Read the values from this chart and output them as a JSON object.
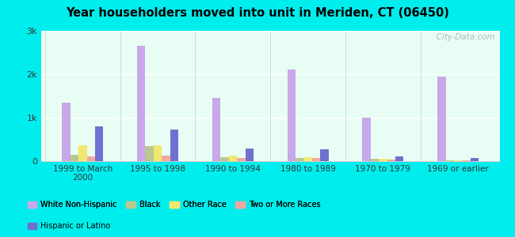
{
  "title": "Year householders moved into unit in Meriden, CT (06450)",
  "categories": [
    "1999 to March\n2000",
    "1995 to 1998",
    "1990 to 1994",
    "1980 to 1989",
    "1970 to 1979",
    "1969 or earlier"
  ],
  "series": {
    "White Non-Hispanic": [
      1350,
      2650,
      1450,
      2100,
      1000,
      1950
    ],
    "Black": [
      150,
      350,
      100,
      70,
      50,
      25
    ],
    "Other Race": [
      370,
      370,
      120,
      100,
      60,
      20
    ],
    "Two or More Races": [
      110,
      120,
      70,
      70,
      30,
      15
    ],
    "Hispanic or Latino": [
      800,
      720,
      300,
      280,
      110,
      70
    ]
  },
  "colors": {
    "White Non-Hispanic": "#c8a8e8",
    "Black": "#b8c890",
    "Other Race": "#f0e870",
    "Two or More Races": "#f0a8a0",
    "Hispanic or Latino": "#7070d0"
  },
  "ylim": [
    0,
    3000
  ],
  "yticks": [
    0,
    1000,
    2000,
    3000
  ],
  "ytick_labels": [
    "0",
    "1k",
    "2k",
    "3k"
  ],
  "background_color": "#e8fef5",
  "outer_background": "#00eded",
  "watermark": "  City-Data.com"
}
